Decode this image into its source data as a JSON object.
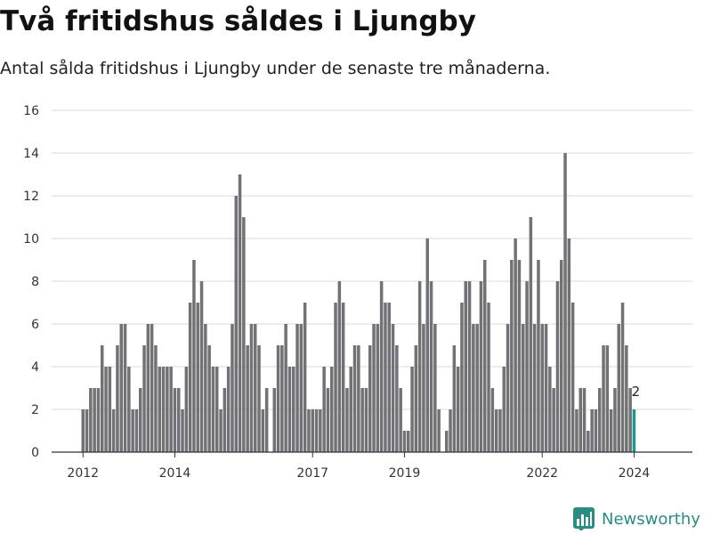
{
  "title": "Två fritidshus såldes i Ljungby",
  "subtitle": "Antal sålda fritidshus i Ljungby under de senaste tre månaderna.",
  "brand": {
    "name": "Newsworthy",
    "icon": "bar-chart-logo-icon",
    "color": "#2a8d84"
  },
  "colors": {
    "bar": "#727176",
    "highlight": "#1a9a8f",
    "grid": "#d9d9d9",
    "axis": "#333333"
  },
  "chart_data": {
    "type": "bar",
    "ylim": [
      0,
      16
    ],
    "yticks": [
      0,
      2,
      4,
      6,
      8,
      10,
      12,
      14,
      16
    ],
    "xticks": [
      {
        "label": "2012",
        "index": 0
      },
      {
        "label": "2014",
        "index": 24
      },
      {
        "label": "2017",
        "index": 60
      },
      {
        "label": "2019",
        "index": 84
      },
      {
        "label": "2022",
        "index": 120
      },
      {
        "label": "2024",
        "index": 144
      }
    ],
    "start_month": "2012-01",
    "values": [
      2,
      2,
      3,
      3,
      3,
      5,
      4,
      4,
      2,
      5,
      6,
      6,
      4,
      2,
      2,
      3,
      5,
      6,
      6,
      5,
      4,
      4,
      4,
      4,
      3,
      3,
      2,
      4,
      7,
      9,
      7,
      8,
      6,
      5,
      4,
      4,
      2,
      3,
      4,
      6,
      12,
      13,
      11,
      5,
      6,
      6,
      5,
      2,
      3,
      0,
      3,
      5,
      5,
      6,
      4,
      4,
      6,
      6,
      7,
      2,
      2,
      2,
      2,
      4,
      3,
      4,
      7,
      8,
      7,
      3,
      4,
      5,
      5,
      3,
      3,
      5,
      6,
      6,
      8,
      7,
      7,
      6,
      5,
      3,
      1,
      1,
      4,
      5,
      8,
      6,
      10,
      8,
      6,
      2,
      0,
      1,
      2,
      5,
      4,
      7,
      8,
      8,
      6,
      6,
      8,
      9,
      7,
      3,
      2,
      2,
      4,
      6,
      9,
      10,
      9,
      6,
      8,
      11,
      6,
      9,
      6,
      6,
      4,
      3,
      8,
      9,
      14,
      10,
      7,
      2,
      3,
      3,
      1,
      2,
      2,
      3,
      5,
      5,
      2,
      3,
      6,
      7,
      5,
      3,
      2
    ],
    "highlight_last": true,
    "last_value_label": "2"
  }
}
